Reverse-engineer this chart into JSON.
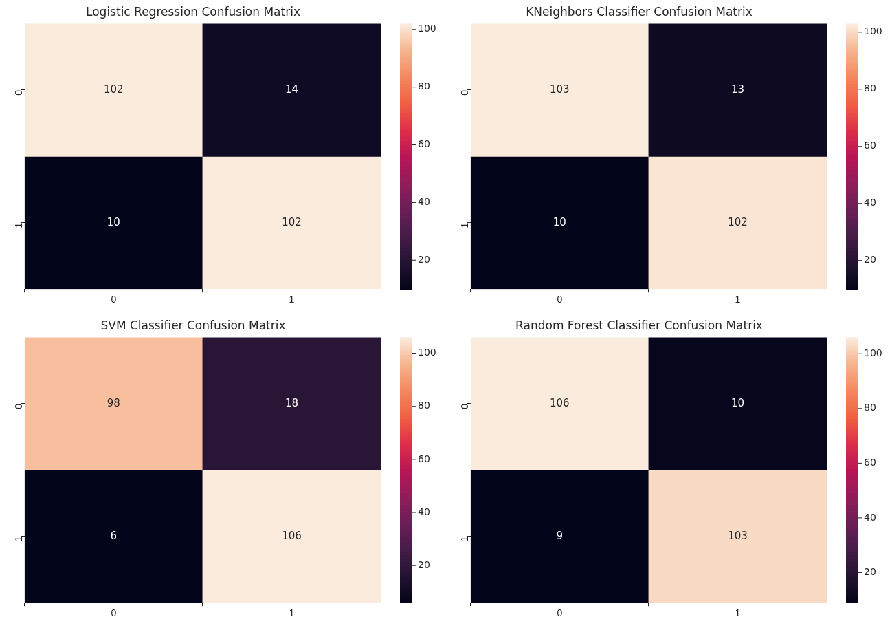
{
  "chart_data": [
    {
      "type": "heatmap",
      "title": "Logistic Regression Confusion Matrix",
      "categories": [
        "0",
        "1"
      ],
      "y_categories": [
        "0",
        "1"
      ],
      "cells": [
        [
          102,
          14
        ],
        [
          10,
          102
        ]
      ],
      "data_labels": true,
      "clim": [
        10,
        102
      ],
      "cticks": [
        20,
        40,
        60,
        80,
        100
      ]
    },
    {
      "type": "heatmap",
      "title": "KNeighbors Classifier Confusion Matrix",
      "categories": [
        "0",
        "1"
      ],
      "y_categories": [
        "0",
        "1"
      ],
      "cells": [
        [
          103,
          13
        ],
        [
          10,
          102
        ]
      ],
      "data_labels": true,
      "clim": [
        10,
        103
      ],
      "cticks": [
        20,
        40,
        60,
        80,
        100
      ]
    },
    {
      "type": "heatmap",
      "title": "SVM Classifier Confusion Matrix",
      "categories": [
        "0",
        "1"
      ],
      "y_categories": [
        "0",
        "1"
      ],
      "cells": [
        [
          98,
          18
        ],
        [
          6,
          106
        ]
      ],
      "data_labels": true,
      "clim": [
        6,
        106
      ],
      "cticks": [
        20,
        40,
        60,
        80,
        100
      ]
    },
    {
      "type": "heatmap",
      "title": "Random Forest Classifier Confusion Matrix",
      "categories": [
        "0",
        "1"
      ],
      "y_categories": [
        "0",
        "1"
      ],
      "cells": [
        [
          106,
          10
        ],
        [
          9,
          103
        ]
      ],
      "data_labels": true,
      "clim": [
        9,
        106
      ],
      "cticks": [
        20,
        40,
        60,
        80,
        100
      ]
    }
  ]
}
